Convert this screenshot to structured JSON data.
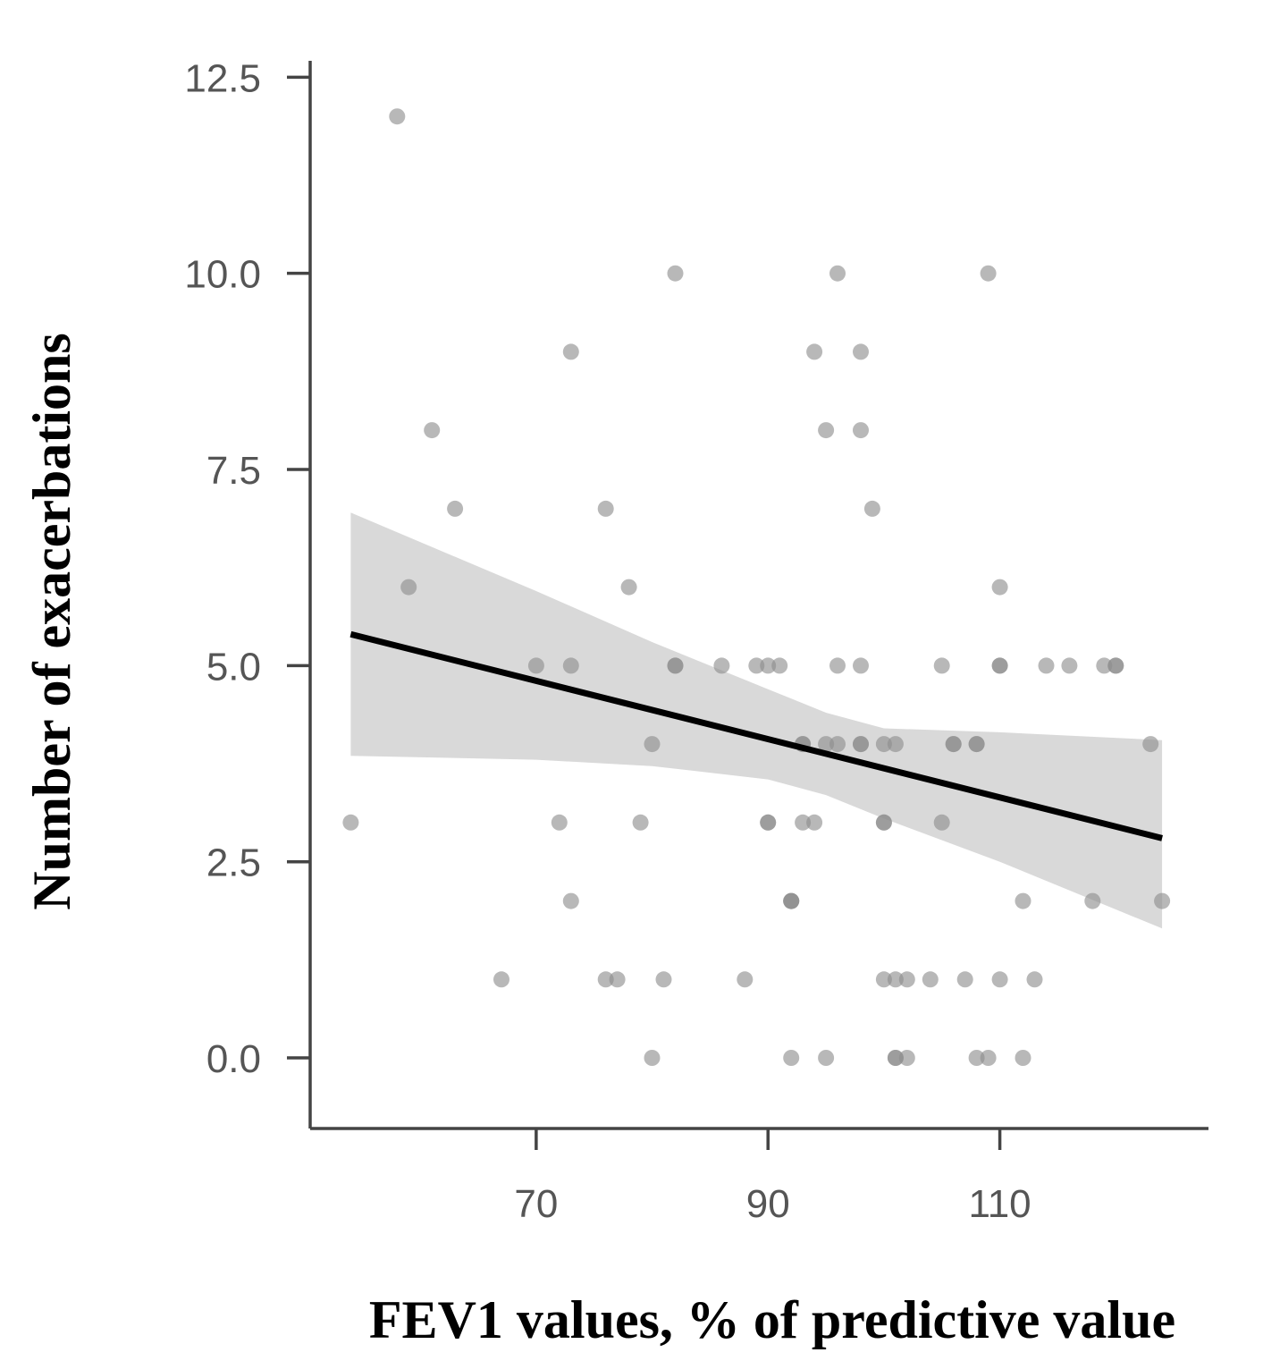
{
  "chart_data": {
    "type": "scatter",
    "xlabel": "FEV1 values, % of predictive value",
    "ylabel": "Number of exacerbations",
    "xlim": [
      50.5,
      128
    ],
    "ylim": [
      -0.9,
      12.8
    ],
    "x_ticks": [
      70,
      90,
      110
    ],
    "x_tick_labels": [
      "70",
      "90",
      "110"
    ],
    "y_ticks": [
      0,
      2.5,
      5,
      7.5,
      10,
      12.5
    ],
    "y_tick_labels": [
      "0.0",
      "2.5",
      "5.0",
      "7.5",
      "10.0",
      "12.5"
    ],
    "grid": false,
    "legend": "none",
    "colors": {
      "point": "#8c8c8c",
      "band": "#d9d9d9",
      "line": "#000000",
      "axis": "#444444",
      "tick_text": "#555555"
    },
    "points": [
      [
        58,
        12
      ],
      [
        82,
        10
      ],
      [
        96,
        10
      ],
      [
        109,
        10
      ],
      [
        73,
        9
      ],
      [
        94,
        9
      ],
      [
        98,
        9
      ],
      [
        61,
        8
      ],
      [
        95,
        8
      ],
      [
        98,
        8
      ],
      [
        63,
        7
      ],
      [
        76,
        7
      ],
      [
        99,
        7
      ],
      [
        59,
        6
      ],
      [
        78,
        6
      ],
      [
        110,
        6
      ],
      [
        70,
        5
      ],
      [
        73,
        5
      ],
      [
        82,
        5
      ],
      [
        82,
        5
      ],
      [
        86,
        5
      ],
      [
        89,
        5
      ],
      [
        90,
        5
      ],
      [
        91,
        5
      ],
      [
        96,
        5
      ],
      [
        98,
        5
      ],
      [
        105,
        5
      ],
      [
        110,
        5
      ],
      [
        110,
        5
      ],
      [
        114,
        5
      ],
      [
        116,
        5
      ],
      [
        119,
        5
      ],
      [
        120,
        5
      ],
      [
        120,
        5
      ],
      [
        80,
        4
      ],
      [
        93,
        4
      ],
      [
        93,
        4
      ],
      [
        95,
        4
      ],
      [
        96,
        4
      ],
      [
        98,
        4
      ],
      [
        98,
        4
      ],
      [
        100,
        4
      ],
      [
        101,
        4
      ],
      [
        106,
        4
      ],
      [
        106,
        4
      ],
      [
        108,
        4
      ],
      [
        108,
        4
      ],
      [
        123,
        4
      ],
      [
        54,
        3
      ],
      [
        72,
        3
      ],
      [
        79,
        3
      ],
      [
        90,
        3
      ],
      [
        90,
        3
      ],
      [
        93,
        3
      ],
      [
        94,
        3
      ],
      [
        100,
        3
      ],
      [
        100,
        3
      ],
      [
        105,
        3
      ],
      [
        73,
        2
      ],
      [
        92,
        2
      ],
      [
        92,
        2
      ],
      [
        92,
        2
      ],
      [
        112,
        2
      ],
      [
        118,
        2
      ],
      [
        124,
        2
      ],
      [
        67,
        1
      ],
      [
        76,
        1
      ],
      [
        77,
        1
      ],
      [
        81,
        1
      ],
      [
        88,
        1
      ],
      [
        100,
        1
      ],
      [
        101,
        1
      ],
      [
        102,
        1
      ],
      [
        104,
        1
      ],
      [
        107,
        1
      ],
      [
        110,
        1
      ],
      [
        113,
        1
      ],
      [
        80,
        0
      ],
      [
        92,
        0
      ],
      [
        95,
        0
      ],
      [
        101,
        0
      ],
      [
        101,
        0
      ],
      [
        102,
        0
      ],
      [
        108,
        0
      ],
      [
        109,
        0
      ],
      [
        112,
        0
      ]
    ],
    "fit_line": {
      "x": [
        54,
        124
      ],
      "y": [
        5.4,
        2.8
      ]
    },
    "confidence_band": {
      "x": [
        54,
        70,
        80,
        90,
        95,
        100,
        110,
        124
      ],
      "upper": [
        6.95,
        5.95,
        5.3,
        4.7,
        4.4,
        4.2,
        4.15,
        4.05
      ],
      "lower": [
        3.85,
        3.8,
        3.72,
        3.55,
        3.35,
        3.05,
        2.5,
        1.65
      ]
    }
  }
}
